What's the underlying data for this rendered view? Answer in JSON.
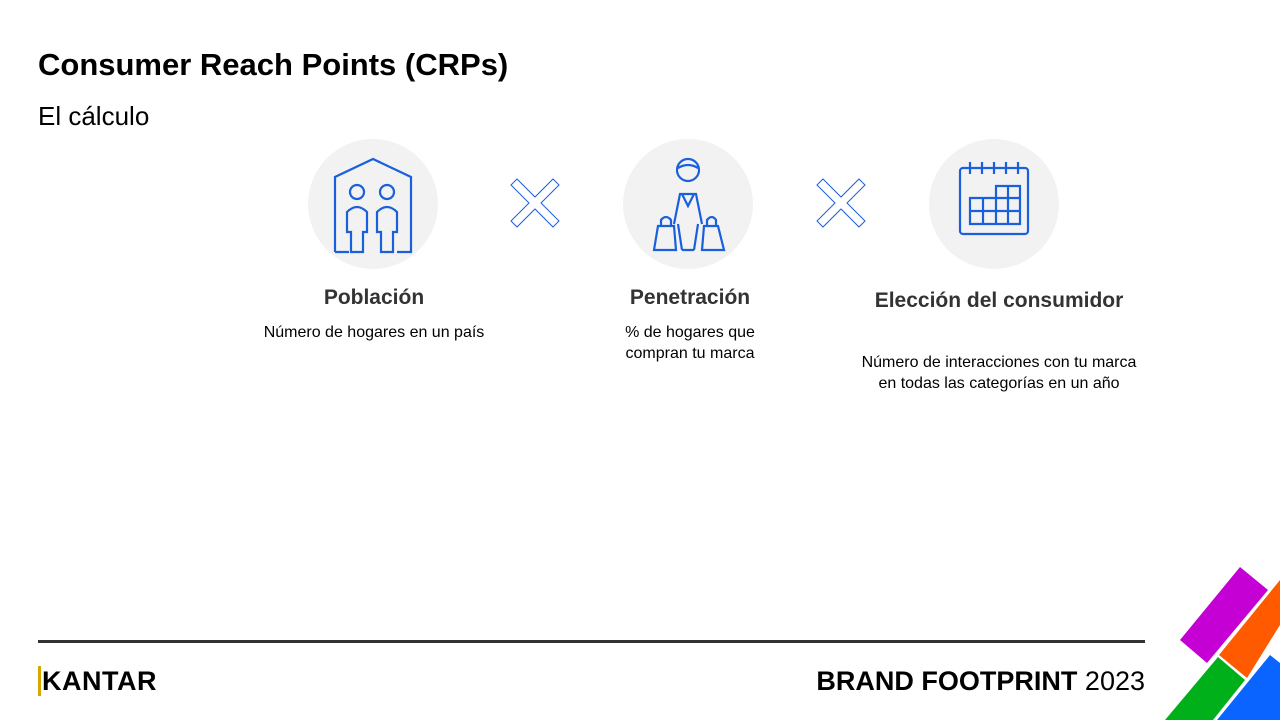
{
  "title": "Consumer Reach Points (CRPs)",
  "subtitle": "El cálculo",
  "items": [
    {
      "icon": "house-family-icon",
      "heading": "Población",
      "description": "Número de hogares en un país"
    },
    {
      "icon": "shopper-icon",
      "heading": "Penetración",
      "description": "% de hogares que compran tu marca"
    },
    {
      "icon": "calendar-icon",
      "heading": "Elección del consumidor",
      "description": "Número de interacciones con tu marca en todas las categorías en un año"
    }
  ],
  "operator": "multiply-icon",
  "footer": {
    "logo": "KANTAR",
    "brand": "BRAND FOOTPRINT",
    "year": "2023"
  },
  "colors": {
    "icon": "#1a5fdc",
    "circle": "#f2f2f2",
    "purple": "#c400d4",
    "orange": "#ff5a00",
    "green": "#00b01a",
    "blue": "#0a64ff"
  }
}
